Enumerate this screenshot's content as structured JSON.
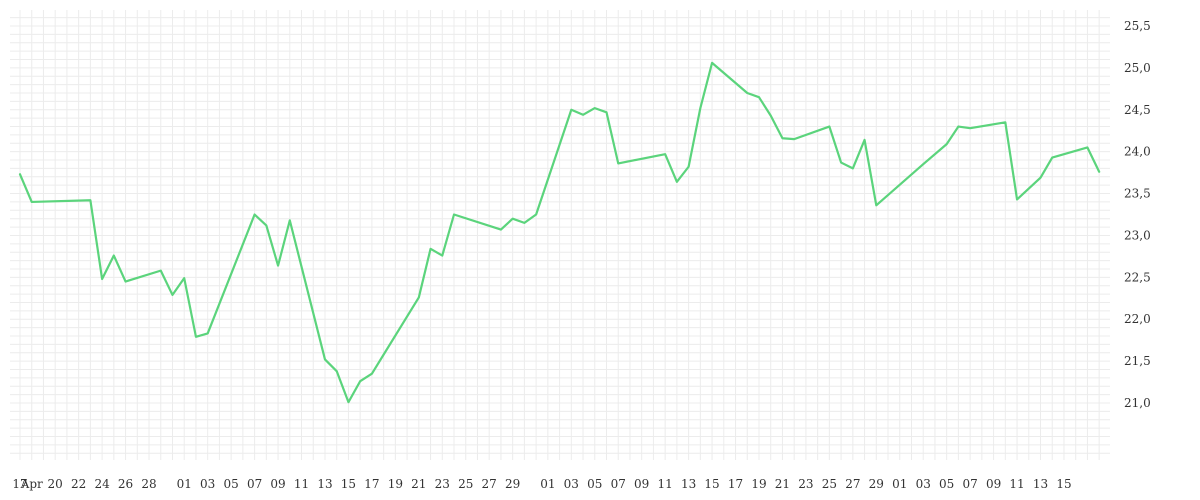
{
  "chart_data": {
    "type": "line",
    "title": "",
    "xlabel": "",
    "ylabel": "",
    "x_axis": {
      "tick_labels": [
        "17",
        "Apr",
        "20",
        "22",
        "24",
        "26",
        "28",
        "01",
        "03",
        "05",
        "07",
        "09",
        "11",
        "13",
        "15",
        "17",
        "19",
        "21",
        "23",
        "25",
        "27",
        "29",
        "01",
        "03",
        "05",
        "07",
        "09",
        "11",
        "13",
        "15",
        "17",
        "19",
        "21",
        "23",
        "25",
        "27",
        "29",
        "01",
        "03",
        "05",
        "07",
        "09",
        "11",
        "13",
        "15"
      ],
      "tick_index": [
        0,
        1,
        3,
        5,
        7,
        9,
        11,
        14,
        16,
        18,
        20,
        22,
        24,
        26,
        28,
        30,
        32,
        34,
        36,
        38,
        40,
        42,
        45,
        47,
        49,
        51,
        53,
        55,
        57,
        59,
        61,
        63,
        65,
        67,
        69,
        71,
        73,
        75,
        77,
        79,
        81,
        83,
        85,
        87,
        89
      ]
    },
    "y_axis": {
      "tick_labels": [
        "21,0",
        "21,5",
        "22,0",
        "22,5",
        "23,0",
        "23,5",
        "24,0",
        "24,5",
        "25,0",
        "25,5"
      ],
      "tick_values": [
        21.0,
        21.5,
        22.0,
        22.5,
        23.0,
        23.5,
        24.0,
        24.5,
        25.0,
        25.5
      ],
      "position": "right"
    },
    "ylim": [
      20.4,
      25.64
    ],
    "grid": true,
    "series": [
      {
        "color": "#5bd47c",
        "points": [
          [
            0,
            23.73
          ],
          [
            1,
            23.4
          ],
          [
            6,
            23.42
          ],
          [
            7,
            22.48
          ],
          [
            8,
            22.76
          ],
          [
            9,
            22.45
          ],
          [
            12,
            22.58
          ],
          [
            13,
            22.29
          ],
          [
            14,
            22.49
          ],
          [
            15,
            21.79
          ],
          [
            16,
            21.83
          ],
          [
            20,
            23.25
          ],
          [
            21,
            23.12
          ],
          [
            22,
            22.64
          ],
          [
            23,
            23.18
          ],
          [
            26,
            21.52
          ],
          [
            27,
            21.38
          ],
          [
            28,
            21.01
          ],
          [
            29,
            21.26
          ],
          [
            30,
            21.35
          ],
          [
            34,
            22.26
          ],
          [
            35,
            22.84
          ],
          [
            36,
            22.76
          ],
          [
            37,
            23.25
          ],
          [
            41,
            23.07
          ],
          [
            42,
            23.2
          ],
          [
            43,
            23.15
          ],
          [
            44,
            23.25
          ],
          [
            47,
            24.5
          ],
          [
            48,
            24.44
          ],
          [
            49,
            24.52
          ],
          [
            50,
            24.47
          ],
          [
            51,
            23.86
          ],
          [
            55,
            23.97
          ],
          [
            56,
            23.64
          ],
          [
            57,
            23.82
          ],
          [
            58,
            24.52
          ],
          [
            59,
            25.06
          ],
          [
            62,
            24.7
          ],
          [
            63,
            24.65
          ],
          [
            64,
            24.43
          ],
          [
            65,
            24.16
          ],
          [
            66,
            24.15
          ],
          [
            69,
            24.3
          ],
          [
            70,
            23.87
          ],
          [
            71,
            23.8
          ],
          [
            72,
            24.14
          ],
          [
            73,
            23.36
          ],
          [
            77,
            23.85
          ],
          [
            79,
            24.09
          ],
          [
            80,
            24.3
          ],
          [
            81,
            24.28
          ],
          [
            84,
            24.35
          ],
          [
            85,
            23.43
          ],
          [
            87,
            23.69
          ],
          [
            88,
            23.93
          ],
          [
            91,
            24.05
          ],
          [
            92,
            23.76
          ]
        ]
      }
    ]
  }
}
